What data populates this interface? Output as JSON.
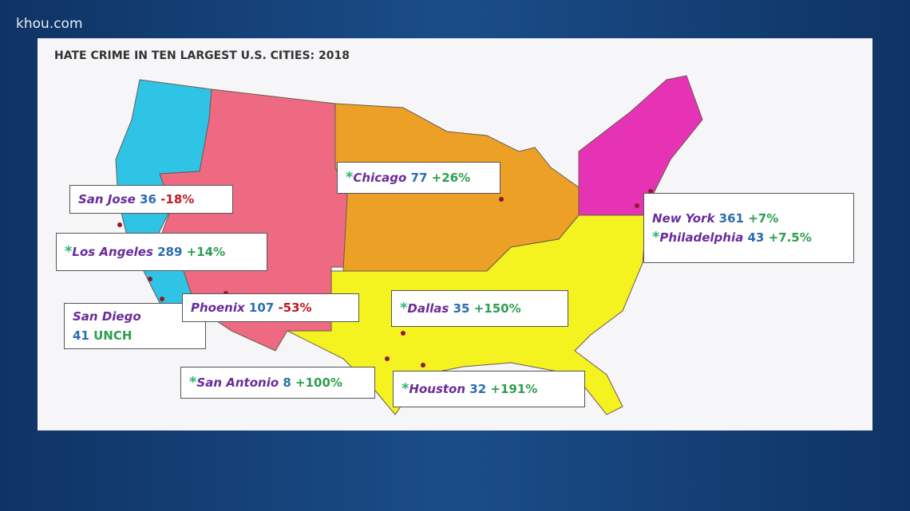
{
  "header": {
    "watermark": "khou.com",
    "title": "HATE CRIME IN TEN LARGEST U.S. CITIES: 2018"
  },
  "cities": [
    {
      "name": "San Jose",
      "count": 36,
      "change": "-18%",
      "change_color": "#c0191e"
    },
    {
      "marker": "*",
      "name": "Los Angeles",
      "count": 289,
      "change": "+14%",
      "change_color": "#2e9e4f"
    },
    {
      "name": "San Diego",
      "count": 41,
      "change": "UNCH",
      "change_color": "#2e9e4f"
    },
    {
      "name": "Phoenix",
      "count": 107,
      "change": "-53%",
      "change_color": "#c0191e"
    },
    {
      "marker": "*",
      "name": "San Antonio",
      "count": 8,
      "change": "+100%",
      "change_color": "#2e9e4f"
    },
    {
      "marker": "*",
      "name": "Chicago",
      "count": 77,
      "change": "+26%",
      "change_color": "#2e9e4f"
    },
    {
      "marker": "*",
      "name": "Dallas",
      "count": 35,
      "change": "+150%",
      "change_color": "#2e9e4f"
    },
    {
      "marker": "*",
      "name": "Houston",
      "count": 32,
      "change": "+191%",
      "change_color": "#2e9e4f"
    },
    {
      "name": "New York",
      "count": 361,
      "change": "+7%",
      "change_color": "#2e9e4f"
    },
    {
      "marker": "*",
      "name": "Philadelphia",
      "count": 43,
      "change": "+7.5%",
      "change_color": "#2e9e4f"
    }
  ]
}
